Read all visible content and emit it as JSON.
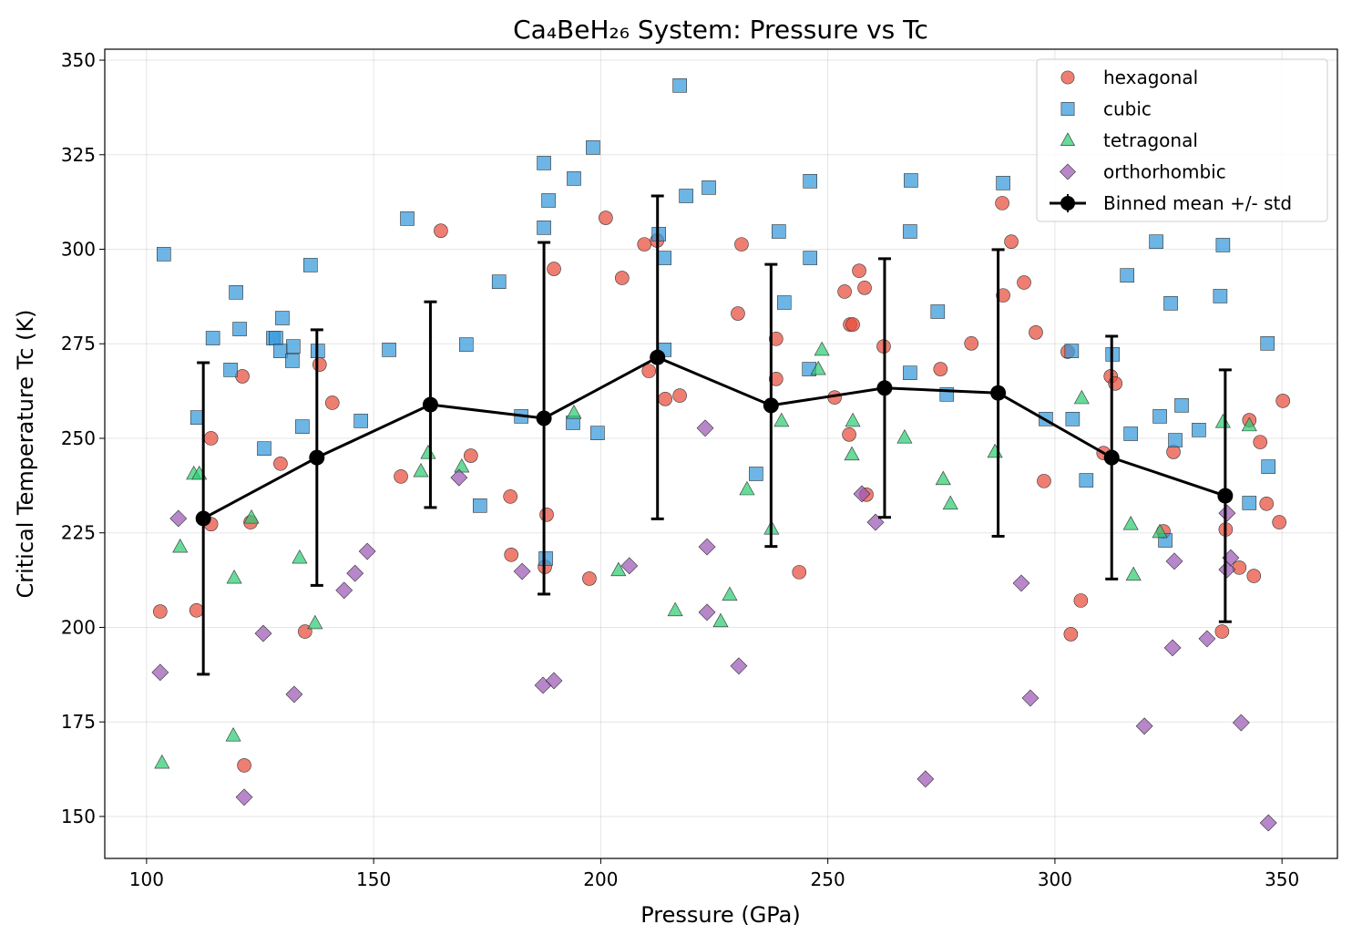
{
  "chart_data": {
    "type": "scatter",
    "title": "Ca₄BeH₂₆ System: Pressure vs Tc",
    "xlabel": "Pressure (GPa)",
    "ylabel": "Critical Temperature Tc (K)",
    "xlim": [
      90.8,
      362.2
    ],
    "ylim": [
      138.9,
      352.9
    ],
    "xticks": [
      100,
      150,
      200,
      250,
      300,
      350
    ],
    "yticks": [
      150,
      175,
      200,
      225,
      250,
      275,
      300,
      325,
      350
    ],
    "grid": true,
    "legend_position": "top-right",
    "series": [
      {
        "name": "hexagonal",
        "marker": "circle",
        "color": "#e74c3c",
        "points": [
          [
            103.0,
            204.2
          ],
          [
            111.0,
            204.5
          ],
          [
            114.2,
            250.0
          ],
          [
            114.2,
            227.3
          ],
          [
            121.1,
            266.4
          ],
          [
            121.5,
            163.5
          ],
          [
            122.9,
            227.8
          ],
          [
            129.5,
            243.3
          ],
          [
            134.9,
            198.9
          ],
          [
            138.1,
            269.5
          ],
          [
            140.9,
            259.4
          ],
          [
            156.0,
            239.9
          ],
          [
            164.8,
            304.9
          ],
          [
            171.4,
            245.4
          ],
          [
            180.1,
            234.6
          ],
          [
            180.3,
            219.2
          ],
          [
            187.7,
            216.0
          ],
          [
            188.1,
            229.8
          ],
          [
            189.7,
            294.8
          ],
          [
            197.5,
            212.9
          ],
          [
            201.1,
            308.3
          ],
          [
            204.7,
            292.4
          ],
          [
            209.6,
            301.3
          ],
          [
            210.6,
            267.8
          ],
          [
            212.4,
            302.3
          ],
          [
            214.2,
            260.4
          ],
          [
            217.4,
            261.3
          ],
          [
            231.0,
            301.3
          ],
          [
            230.2,
            283.0
          ],
          [
            238.6,
            276.3
          ],
          [
            238.6,
            265.7
          ],
          [
            243.7,
            214.6
          ],
          [
            251.5,
            260.8
          ],
          [
            253.7,
            288.8
          ],
          [
            254.9,
            280.1
          ],
          [
            255.5,
            280.1
          ],
          [
            256.9,
            294.3
          ],
          [
            258.1,
            289.8
          ],
          [
            258.5,
            235.1
          ],
          [
            254.7,
            251.0
          ],
          [
            262.3,
            274.3
          ],
          [
            274.8,
            268.3
          ],
          [
            281.6,
            275.1
          ],
          [
            288.6,
            287.8
          ],
          [
            288.4,
            312.2
          ],
          [
            290.4,
            302.0
          ],
          [
            293.2,
            291.2
          ],
          [
            295.8,
            278.0
          ],
          [
            297.6,
            238.7
          ],
          [
            302.8,
            272.9
          ],
          [
            303.5,
            198.2
          ],
          [
            305.7,
            207.1
          ],
          [
            310.7,
            246.1
          ],
          [
            312.3,
            266.4
          ],
          [
            313.3,
            264.5
          ],
          [
            323.9,
            225.4
          ],
          [
            326.1,
            246.4
          ],
          [
            336.8,
            198.9
          ],
          [
            337.6,
            225.9
          ],
          [
            340.6,
            215.8
          ],
          [
            342.8,
            254.8
          ],
          [
            343.8,
            213.6
          ],
          [
            345.2,
            249.0
          ],
          [
            346.6,
            232.7
          ],
          [
            349.4,
            227.8
          ],
          [
            350.2,
            259.9
          ]
        ]
      },
      {
        "name": "cubic",
        "marker": "square",
        "color": "#3498db",
        "points": [
          [
            103.8,
            298.7
          ],
          [
            111.2,
            255.5
          ],
          [
            114.6,
            276.5
          ],
          [
            118.5,
            268.1
          ],
          [
            119.7,
            288.6
          ],
          [
            120.5,
            278.9
          ],
          [
            125.9,
            247.3
          ],
          [
            127.9,
            276.5
          ],
          [
            128.5,
            276.5
          ],
          [
            129.5,
            273.1
          ],
          [
            129.9,
            281.8
          ],
          [
            132.1,
            270.5
          ],
          [
            132.3,
            274.3
          ],
          [
            134.3,
            253.1
          ],
          [
            136.1,
            295.8
          ],
          [
            137.7,
            273.1
          ],
          [
            147.2,
            254.6
          ],
          [
            153.4,
            273.4
          ],
          [
            157.4,
            308.1
          ],
          [
            170.4,
            274.8
          ],
          [
            173.4,
            232.2
          ],
          [
            177.6,
            291.4
          ],
          [
            182.5,
            255.8
          ],
          [
            187.5,
            305.7
          ],
          [
            187.5,
            322.8
          ],
          [
            188.5,
            312.9
          ],
          [
            187.9,
            218.2
          ],
          [
            194.1,
            318.7
          ],
          [
            193.9,
            254.1
          ],
          [
            198.3,
            326.9
          ],
          [
            199.3,
            251.4
          ],
          [
            212.8,
            304.0
          ],
          [
            214.0,
            297.7
          ],
          [
            214.0,
            273.4
          ],
          [
            217.4,
            343.3
          ],
          [
            218.8,
            314.1
          ],
          [
            223.8,
            316.3
          ],
          [
            234.2,
            240.6
          ],
          [
            239.2,
            304.7
          ],
          [
            240.4,
            285.9
          ],
          [
            246.1,
            297.7
          ],
          [
            246.1,
            318.0
          ],
          [
            245.9,
            268.3
          ],
          [
            268.3,
            318.2
          ],
          [
            268.1,
            304.7
          ],
          [
            268.1,
            267.3
          ],
          [
            274.2,
            283.5
          ],
          [
            276.2,
            261.6
          ],
          [
            288.6,
            317.5
          ],
          [
            298.0,
            255.1
          ],
          [
            303.7,
            273.1
          ],
          [
            303.9,
            255.1
          ],
          [
            306.9,
            238.9
          ],
          [
            312.7,
            272.2
          ],
          [
            316.7,
            251.2
          ],
          [
            315.9,
            293.1
          ],
          [
            322.3,
            302.0
          ],
          [
            323.1,
            255.8
          ],
          [
            324.3,
            223.0
          ],
          [
            325.5,
            285.7
          ],
          [
            326.5,
            249.5
          ],
          [
            327.9,
            258.7
          ],
          [
            331.7,
            252.2
          ],
          [
            336.4,
            287.6
          ],
          [
            337.0,
            301.1
          ],
          [
            342.8,
            232.9
          ],
          [
            346.8,
            275.1
          ],
          [
            347.0,
            242.5
          ]
        ]
      },
      {
        "name": "tetragonal",
        "marker": "triangle",
        "color": "#2ecc71",
        "points": [
          [
            103.4,
            164.2
          ],
          [
            107.4,
            221.3
          ],
          [
            110.4,
            240.6
          ],
          [
            111.6,
            240.6
          ],
          [
            119.1,
            171.4
          ],
          [
            119.3,
            213.1
          ],
          [
            123.1,
            229.0
          ],
          [
            133.7,
            218.4
          ],
          [
            137.1,
            201.1
          ],
          [
            160.4,
            241.3
          ],
          [
            162.0,
            246.1
          ],
          [
            169.4,
            242.5
          ],
          [
            194.1,
            256.7
          ],
          [
            203.9,
            215.1
          ],
          [
            216.4,
            204.5
          ],
          [
            226.4,
            201.6
          ],
          [
            228.4,
            208.6
          ],
          [
            232.2,
            236.5
          ],
          [
            237.6,
            226.1
          ],
          [
            239.8,
            254.6
          ],
          [
            247.9,
            268.3
          ],
          [
            248.7,
            273.4
          ],
          [
            255.5,
            254.6
          ],
          [
            255.3,
            245.7
          ],
          [
            266.9,
            250.2
          ],
          [
            275.4,
            239.2
          ],
          [
            277.0,
            232.7
          ],
          [
            286.8,
            246.4
          ],
          [
            305.9,
            260.6
          ],
          [
            316.7,
            227.3
          ],
          [
            317.3,
            213.9
          ],
          [
            323.1,
            225.2
          ],
          [
            337.0,
            254.3
          ],
          [
            342.8,
            253.4
          ]
        ]
      },
      {
        "name": "orthorhombic",
        "marker": "diamond",
        "color": "#9b59b6",
        "points": [
          [
            103.0,
            188.1
          ],
          [
            107.0,
            228.8
          ],
          [
            121.5,
            155.1
          ],
          [
            125.7,
            198.4
          ],
          [
            132.5,
            182.3
          ],
          [
            143.5,
            209.8
          ],
          [
            145.9,
            214.3
          ],
          [
            148.6,
            220.1
          ],
          [
            168.8,
            239.6
          ],
          [
            182.7,
            214.8
          ],
          [
            187.3,
            184.7
          ],
          [
            189.7,
            185.9
          ],
          [
            206.3,
            216.3
          ],
          [
            223.0,
            252.7
          ],
          [
            223.4,
            221.3
          ],
          [
            223.4,
            204.0
          ],
          [
            230.4,
            189.8
          ],
          [
            257.5,
            235.3
          ],
          [
            260.5,
            227.8
          ],
          [
            271.5,
            159.9
          ],
          [
            292.6,
            211.7
          ],
          [
            294.6,
            181.3
          ],
          [
            319.7,
            173.9
          ],
          [
            326.3,
            217.5
          ],
          [
            325.9,
            194.6
          ],
          [
            333.5,
            197.0
          ],
          [
            337.9,
            230.2
          ],
          [
            337.9,
            215.3
          ],
          [
            338.7,
            218.4
          ],
          [
            341.0,
            174.8
          ],
          [
            347.0,
            148.3
          ]
        ]
      }
    ],
    "binned": {
      "name": "Binned mean +/- std",
      "color": "#000000",
      "x": [
        112.5,
        137.5,
        162.5,
        187.5,
        212.5,
        237.5,
        262.5,
        287.5,
        312.5,
        337.5
      ],
      "y": [
        228.8,
        244.9,
        258.9,
        255.3,
        271.4,
        258.7,
        263.3,
        262.0,
        244.9,
        234.8
      ],
      "std": [
        41.2,
        33.8,
        27.2,
        46.5,
        42.7,
        37.3,
        34.2,
        37.9,
        32.1,
        33.3
      ]
    }
  }
}
